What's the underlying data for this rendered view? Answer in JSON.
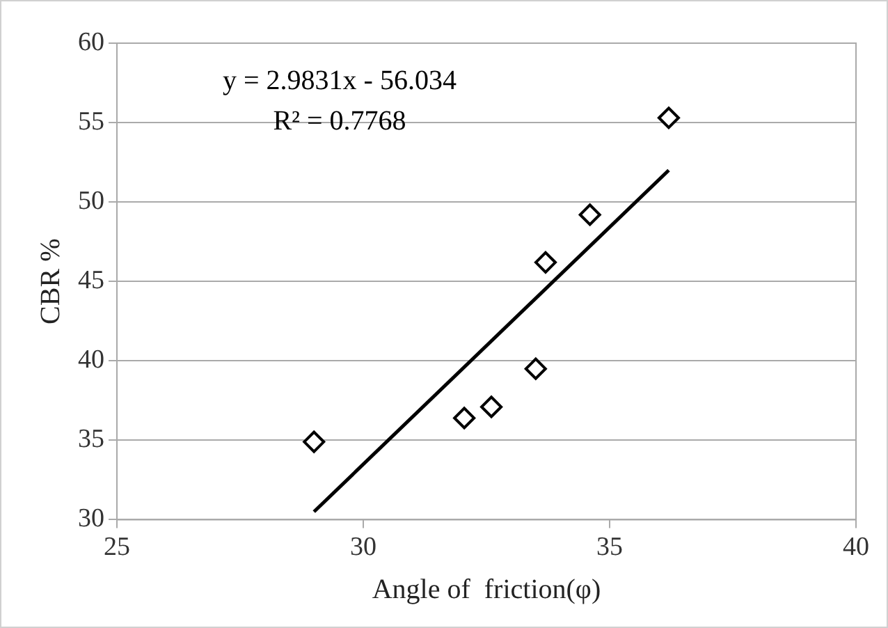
{
  "chart_data": {
    "type": "scatter",
    "xlabel": "Angle of  friction(φ)",
    "ylabel": "CBR %",
    "xlim": [
      25,
      40
    ],
    "xticks": [
      25,
      30,
      35,
      40
    ],
    "ylim": [
      30,
      60
    ],
    "yticks": [
      30,
      35,
      40,
      45,
      50,
      55,
      60
    ],
    "grid": "y",
    "legend": false,
    "marker": "diamond",
    "annotations": [
      "y = 2.9831x - 56.034",
      "R² = 0.7768"
    ],
    "series": [
      {
        "color": "#000000",
        "x": [
          29.0,
          32.05,
          32.6,
          33.5,
          33.7,
          34.6,
          36.2
        ],
        "values": [
          34.9,
          36.4,
          37.1,
          39.5,
          46.2,
          49.2,
          55.3
        ]
      },
      {
        "type": "line",
        "color": "#000000",
        "x": [
          29.0,
          36.2
        ],
        "values": [
          30.5,
          52.0
        ],
        "marker": "none",
        "line_style": "solid"
      }
    ]
  }
}
